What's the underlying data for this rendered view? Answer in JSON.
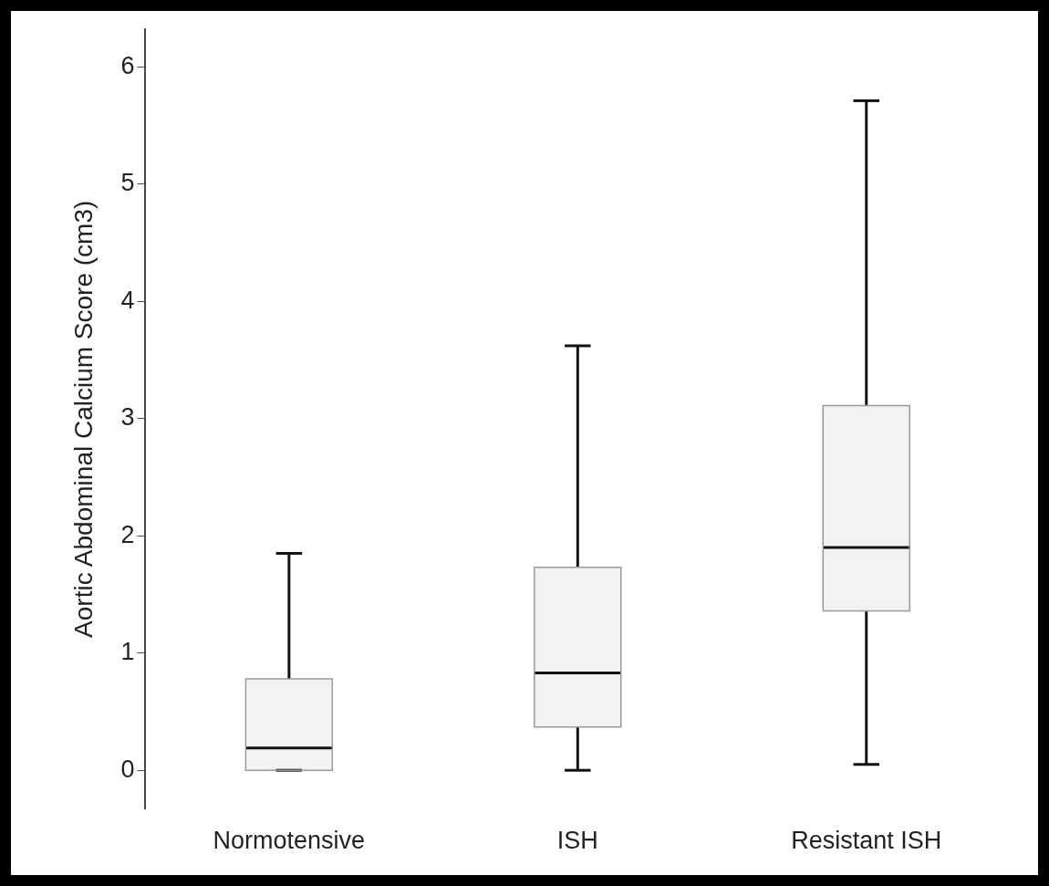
{
  "chart_data": {
    "type": "box",
    "ylabel": "Aortic Abdominal Calcium Score (cm3)",
    "categories": [
      "Normotensive",
      "ISH",
      "Resistant ISH"
    ],
    "boxes": [
      {
        "low": 0,
        "q1": 0,
        "median": 0.19,
        "q3": 0.78,
        "high": 1.85
      },
      {
        "low": 0,
        "q1": 0.37,
        "median": 0.83,
        "q3": 1.73,
        "high": 3.62
      },
      {
        "low": 0.05,
        "q1": 1.36,
        "median": 1.9,
        "q3": 3.11,
        "high": 5.71
      }
    ],
    "color": "#f2f2f2",
    "ylim": [
      -0.33,
      6.32
    ],
    "yticks": [
      0,
      1,
      2,
      3,
      4,
      5,
      6
    ],
    "grid": false,
    "legend": false
  }
}
